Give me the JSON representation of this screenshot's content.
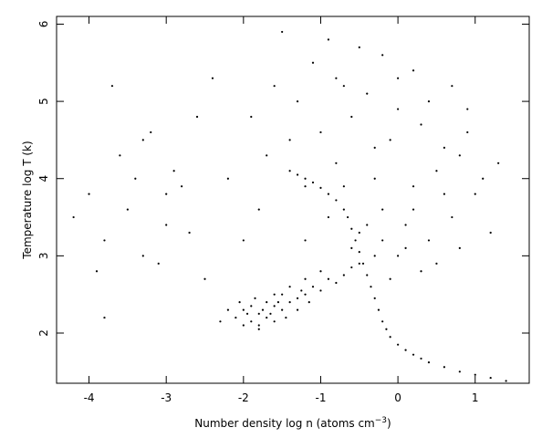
{
  "chart_data": {
    "type": "scatter",
    "xlabel_parts": [
      "Number density log n (atoms cm",
      "−3",
      ")"
    ],
    "ylabel": "Temperature log T (k)",
    "color": "#000000",
    "xlim": [
      -4.42,
      1.7
    ],
    "ylim": [
      1.35,
      6.1
    ],
    "xticks": [
      -4,
      -3,
      -2,
      -1,
      0,
      1
    ],
    "yticks": [
      2,
      3,
      4,
      5,
      6
    ],
    "x": [
      -2.1,
      -2.0,
      -1.9,
      -1.8,
      -1.7,
      -1.6,
      -1.5,
      -1.4,
      -1.3,
      -1.2,
      -2.2,
      -2.0,
      -1.9,
      -1.8,
      -1.7,
      -1.6,
      -1.5,
      -1.3,
      -1.1,
      -1.0,
      -1.95,
      -1.85,
      -1.75,
      -1.65,
      -1.55,
      -1.45,
      -1.25,
      -1.15,
      -0.9,
      -0.8,
      -2.3,
      -2.05,
      -1.8,
      -1.6,
      -1.4,
      -1.2,
      -1.0,
      -0.7,
      -0.6,
      -0.5,
      -1.2,
      -0.9,
      -0.5,
      -0.2,
      0.1,
      0.4,
      0.7,
      1.0,
      -0.8,
      -0.3,
      0.2,
      0.5,
      0.8,
      1.1,
      -1.0,
      -0.6,
      -0.1,
      0.3,
      0.6,
      0.9,
      -1.3,
      -0.7,
      -0.4,
      0.0,
      0.4,
      -1.1,
      -0.2,
      0.2,
      -0.9,
      -0.5,
      -0.3,
      0.1,
      0.5,
      0.8,
      1.2,
      -1.4,
      -1.6,
      -1.5,
      -0.1,
      0.3,
      -0.6,
      -0.4,
      -0.2,
      0.0,
      0.2,
      0.6,
      0.9,
      1.3,
      -0.7,
      -0.3,
      -1.8,
      -2.2,
      -1.9,
      -2.4,
      -2.0,
      -0.8,
      0.0,
      0.7,
      -1.7,
      -1.2,
      -4.0,
      -3.8,
      -3.5,
      -3.3,
      -3.0,
      -2.8,
      -3.9,
      -3.6,
      -3.2,
      -2.7,
      -3.1,
      -2.9,
      -3.4,
      -4.2,
      -3.7,
      -2.6,
      -3.0,
      -3.3,
      -2.5,
      -3.8,
      -1.4,
      -1.3,
      -1.2,
      -1.1,
      -1.0,
      -0.9,
      -0.8,
      -0.7,
      -0.65,
      -0.6,
      -0.55,
      -0.5,
      -0.45,
      -0.4,
      -0.35,
      -0.3,
      -0.25,
      -0.2,
      -0.15,
      -0.1,
      0.0,
      0.1,
      0.2,
      0.3,
      0.4,
      0.6,
      0.8,
      1.0,
      1.2,
      1.4
    ],
    "values": [
      2.2,
      2.3,
      2.15,
      2.25,
      2.2,
      2.35,
      2.3,
      2.4,
      2.45,
      2.5,
      2.3,
      2.1,
      2.35,
      2.1,
      2.4,
      2.15,
      2.5,
      2.3,
      2.6,
      2.55,
      2.25,
      2.45,
      2.3,
      2.25,
      2.4,
      2.2,
      2.55,
      2.4,
      2.7,
      2.65,
      2.15,
      2.4,
      2.05,
      2.5,
      2.6,
      2.7,
      2.8,
      2.75,
      2.85,
      2.9,
      3.2,
      3.5,
      3.3,
      3.6,
      3.4,
      3.2,
      3.5,
      3.8,
      4.2,
      4.0,
      3.9,
      4.1,
      4.3,
      4.0,
      4.6,
      4.8,
      4.5,
      4.7,
      4.4,
      4.9,
      5.0,
      5.2,
      5.1,
      5.3,
      5.0,
      5.5,
      5.6,
      5.4,
      5.8,
      5.7,
      3.0,
      3.1,
      2.9,
      3.1,
      3.3,
      4.5,
      5.2,
      5.9,
      2.7,
      2.8,
      3.1,
      3.4,
      3.2,
      3.0,
      3.6,
      3.8,
      4.6,
      4.2,
      3.9,
      4.4,
      3.6,
      4.0,
      4.8,
      5.3,
      3.2,
      5.3,
      4.9,
      5.2,
      4.3,
      3.9,
      3.8,
      3.2,
      3.6,
      3.0,
      3.4,
      3.9,
      2.8,
      4.3,
      4.6,
      3.3,
      2.9,
      4.1,
      4.0,
      3.5,
      5.2,
      4.8,
      3.8,
      4.5,
      2.7,
      2.2,
      4.1,
      4.05,
      4.0,
      3.95,
      3.88,
      3.8,
      3.72,
      3.6,
      3.5,
      3.35,
      3.2,
      3.05,
      2.9,
      2.75,
      2.6,
      2.45,
      2.3,
      2.15,
      2.05,
      1.95,
      1.85,
      1.78,
      1.72,
      1.67,
      1.62,
      1.56,
      1.5,
      1.46,
      1.42,
      1.38
    ]
  }
}
